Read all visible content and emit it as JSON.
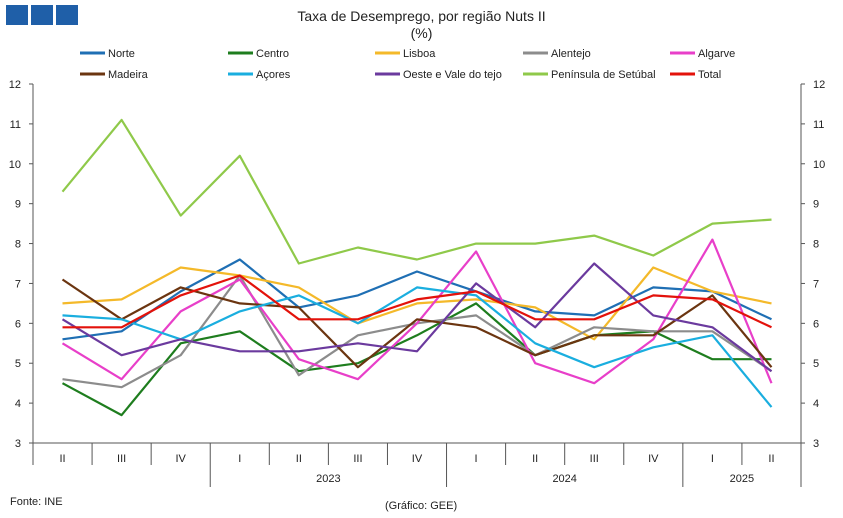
{
  "chart_data": {
    "type": "line",
    "title": "Taxa de Desemprego, por região Nuts II",
    "subtitle": "(%)",
    "ylim": [
      3,
      12
    ],
    "yticks": [
      3,
      4,
      5,
      6,
      7,
      8,
      9,
      10,
      11,
      12
    ],
    "x": [
      "II",
      "III",
      "IV",
      "I",
      "II",
      "III",
      "IV",
      "I",
      "II",
      "III",
      "IV",
      "I",
      "II"
    ],
    "years": [
      {
        "label": "2023",
        "start": 3,
        "end": 6
      },
      {
        "label": "2024",
        "start": 7,
        "end": 10
      },
      {
        "label": "2025",
        "start": 11,
        "end": 12
      }
    ],
    "grid": false,
    "legend": "top",
    "series": [
      {
        "name": "Norte",
        "color": "#1f6fb4",
        "values": [
          5.6,
          5.8,
          6.8,
          7.6,
          6.4,
          6.7,
          7.3,
          6.8,
          6.3,
          6.2,
          6.9,
          6.8,
          6.1
        ]
      },
      {
        "name": "Centro",
        "color": "#1e7d1e",
        "values": [
          4.5,
          3.7,
          5.5,
          5.8,
          4.8,
          5.0,
          5.7,
          6.5,
          5.2,
          5.7,
          5.8,
          5.1,
          5.1
        ]
      },
      {
        "name": "Lisboa",
        "color": "#f4b92a",
        "values": [
          6.5,
          6.6,
          7.4,
          7.2,
          6.9,
          6.0,
          6.5,
          6.6,
          6.4,
          5.6,
          7.4,
          6.8,
          6.5
        ]
      },
      {
        "name": "Alentejo",
        "color": "#8c8c8c",
        "values": [
          4.6,
          4.4,
          5.2,
          7.2,
          4.7,
          5.7,
          6.0,
          6.2,
          5.2,
          5.9,
          5.8,
          5.8,
          4.8
        ]
      },
      {
        "name": "Algarve",
        "color": "#e83fc9",
        "values": [
          5.5,
          4.6,
          6.3,
          7.1,
          5.1,
          4.6,
          6.0,
          7.8,
          5.0,
          4.5,
          5.6,
          8.1,
          4.5
        ]
      },
      {
        "name": "Madeira",
        "color": "#6b3510",
        "values": [
          7.1,
          6.1,
          6.9,
          6.5,
          6.4,
          4.9,
          6.1,
          5.9,
          5.2,
          5.7,
          5.7,
          6.7,
          4.9
        ]
      },
      {
        "name": "Açores",
        "color": "#1aaedf",
        "values": [
          6.2,
          6.1,
          5.6,
          6.3,
          6.7,
          6.0,
          6.9,
          6.7,
          5.5,
          4.9,
          5.4,
          5.7,
          3.9
        ]
      },
      {
        "name": "Oeste e Vale do tejo",
        "color": "#6b3a9e",
        "values": [
          6.1,
          5.2,
          5.6,
          5.3,
          5.3,
          5.5,
          5.3,
          7.0,
          5.9,
          7.5,
          6.2,
          5.9,
          4.8
        ]
      },
      {
        "name": "Península de Setúbal",
        "color": "#8fc94a",
        "values": [
          9.3,
          11.1,
          8.7,
          10.2,
          7.5,
          7.9,
          7.6,
          8.0,
          8.0,
          8.2,
          7.7,
          8.5,
          8.6
        ]
      },
      {
        "name": "Total",
        "color": "#e3120b",
        "values": [
          5.9,
          5.9,
          6.7,
          7.2,
          6.1,
          6.1,
          6.6,
          6.8,
          6.1,
          6.1,
          6.7,
          6.6,
          5.9
        ]
      }
    ]
  },
  "footer": {
    "source": "Fonte: INE",
    "credit": "(Gráfico: GEE)"
  }
}
